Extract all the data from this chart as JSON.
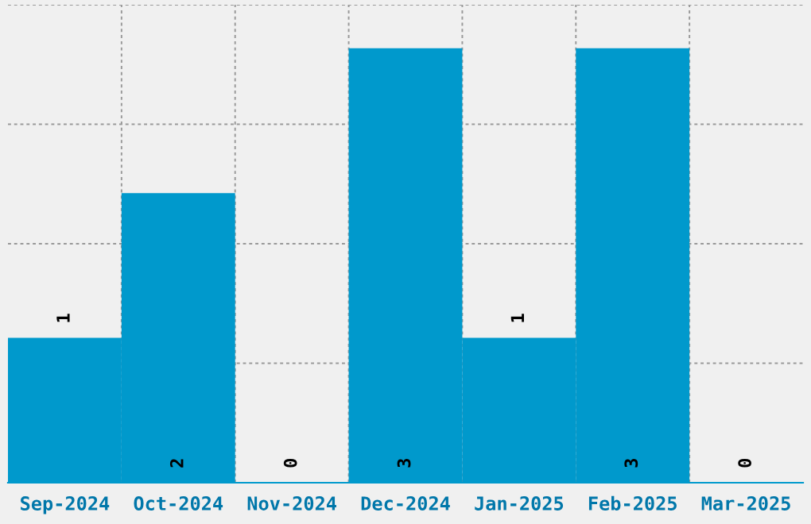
{
  "chart_data": {
    "type": "bar",
    "categories": [
      "Sep-2024",
      "Oct-2024",
      "Nov-2024",
      "Dec-2024",
      "Jan-2025",
      "Feb-2025",
      "Mar-2025"
    ],
    "values": [
      1,
      2,
      0,
      3,
      1,
      3,
      0
    ],
    "color": "#0099cc",
    "ylim": [
      0,
      3.3
    ],
    "yticks": [
      {
        "value": 0,
        "label": null
      },
      {
        "value": 0.825,
        "label": null
      },
      {
        "value": 1.65,
        "label": null
      },
      {
        "value": 2.475,
        "label": null
      },
      {
        "value": 3.3,
        "label": null
      }
    ],
    "tick_labels": "x",
    "grid": true,
    "data_labels": true
  }
}
